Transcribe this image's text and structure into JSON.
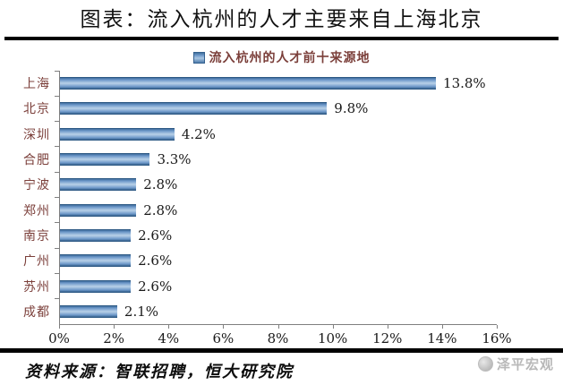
{
  "header": {
    "title": "图表：流入杭州的人才主要来自上海北京"
  },
  "legend": {
    "label": "流入杭州的人才前十来源地",
    "marker_color": "#4f81bd"
  },
  "chart_data": {
    "type": "bar",
    "orientation": "horizontal",
    "title": "流入杭州的人才前十来源地",
    "categories": [
      "上海",
      "北京",
      "深圳",
      "合肥",
      "宁波",
      "郑州",
      "南京",
      "广州",
      "苏州",
      "成都"
    ],
    "values": [
      13.8,
      9.8,
      4.2,
      3.3,
      2.8,
      2.8,
      2.6,
      2.6,
      2.6,
      2.1
    ],
    "value_labels": [
      "13.8%",
      "9.8%",
      "4.2%",
      "3.3%",
      "2.8%",
      "2.8%",
      "2.6%",
      "2.6%",
      "2.6%",
      "2.1%"
    ],
    "xlabel": "",
    "ylabel": "",
    "xlim": [
      0,
      16
    ],
    "x_ticks": [
      "0%",
      "2%",
      "4%",
      "6%",
      "8%",
      "10%",
      "12%",
      "14%",
      "16%"
    ],
    "grid": false,
    "legend_position": "top",
    "bar_color": "#5b8ec4",
    "data_labels": true
  },
  "footer": {
    "source": "资料来源：智联招聘，恒大研究院",
    "watermark": "泽平宏观"
  },
  "colors": {
    "category_label": "#7b3f3a",
    "legend_text": "#7b3f3a",
    "bar_border": "#2d5984",
    "axis": "#7f7f7f",
    "divider": "#000000",
    "watermark": "#b8b8b8"
  },
  "icons": {
    "legend_marker": "square-marker",
    "watermark_logo": "zeping-macro-logo"
  }
}
